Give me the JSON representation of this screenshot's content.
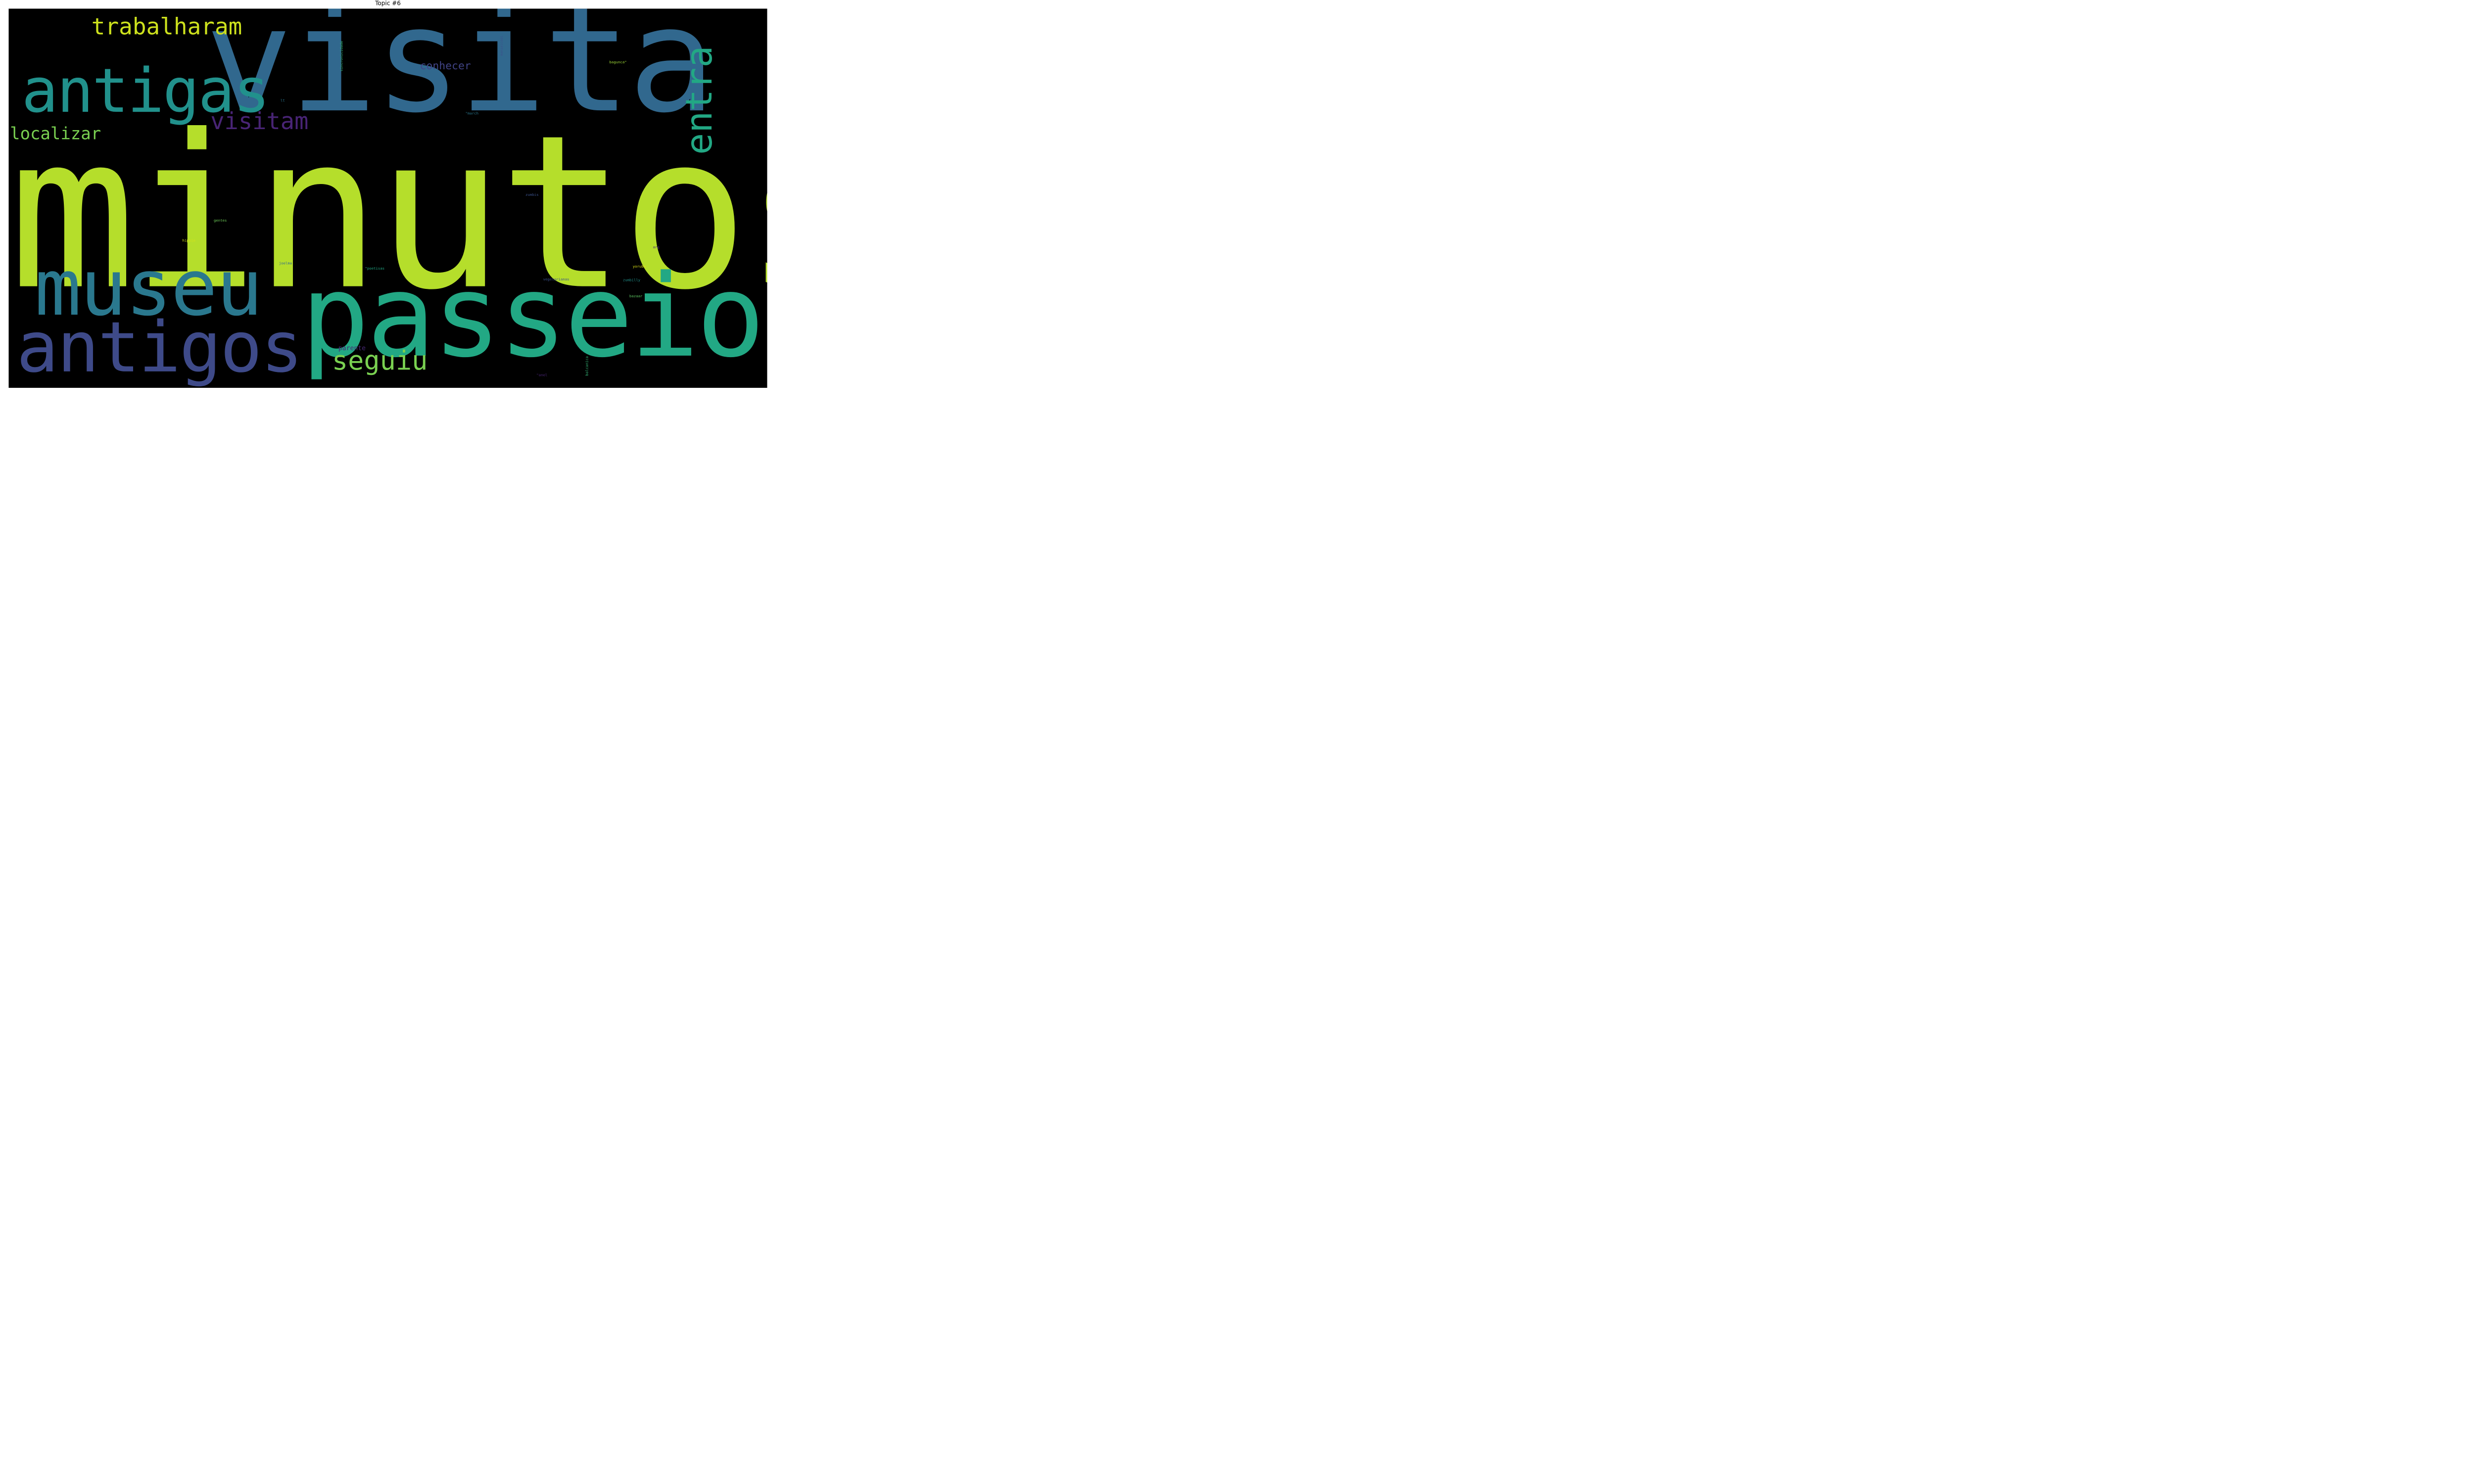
{
  "title": "Topic #6",
  "words": [
    {
      "key": "minutos",
      "text": "minutos",
      "color": "#b5de2b"
    },
    {
      "key": "visita",
      "text": "visita",
      "color": "#31688e"
    },
    {
      "key": "passeio",
      "text": "passeio",
      "color": "#22a884"
    },
    {
      "key": "antigas",
      "text": "antigas",
      "color": "#21918c"
    },
    {
      "key": "museu",
      "text": "museu",
      "color": "#2a788e"
    },
    {
      "key": "antigos",
      "text": "antigos",
      "color": "#3e4a89"
    },
    {
      "key": "entra",
      "text": "entra",
      "color": "#22a884"
    },
    {
      "key": "trabalharam",
      "text": "trabalharam",
      "color": "#cde11d"
    },
    {
      "key": "visitam",
      "text": "visitam",
      "color": "#482475"
    },
    {
      "key": "localizar",
      "text": "localizar",
      "color": "#7ad151"
    },
    {
      "key": "seguiu",
      "text": "seguiu",
      "color": "#7ad151"
    },
    {
      "key": "conhecer",
      "text": "conhecer",
      "color": "#414487"
    },
    {
      "key": "parente",
      "text": "parente",
      "color": "#482878"
    },
    {
      "key": "sincronicidade",
      "text": "sincronicidade",
      "color": "#35b779"
    },
    {
      "key": "manialcool",
      "text": "manialcool",
      "color": "#3b528b"
    },
    {
      "key": "bagunca",
      "text": "bagunca\"",
      "color": "#a0da39"
    },
    {
      "key": "lt",
      "text": "lt",
      "color": "#2a788e"
    },
    {
      "key": "march",
      "text": "\"march",
      "color": "#2a788e"
    },
    {
      "key": "zumbis",
      "text": "zumbis",
      "color": "#3b528b"
    },
    {
      "key": "gentes",
      "text": "gentes",
      "color": "#6ece58"
    },
    {
      "key": "hippie",
      "text": "hippie",
      "color": "#d2e21b"
    },
    {
      "key": "arg",
      "text": "arg",
      "color": "#482878"
    },
    {
      "key": "joelma",
      "text": "joelma",
      "color": "#31688e"
    },
    {
      "key": "poetisas",
      "text": "\"poetisas",
      "color": "#22a884"
    },
    {
      "key": "yoruba",
      "text": "yoruba",
      "color": "#dde318"
    },
    {
      "key": "vegetarianas",
      "text": "vegetarianas",
      "color": "#3b528b"
    },
    {
      "key": "zumbilly",
      "text": "zumbilly",
      "color": "#21918c"
    },
    {
      "key": "bazaar",
      "text": "bazaar",
      "color": "#5ec962"
    },
    {
      "key": "balcanica",
      "text": "balcanica",
      "color": "#35b779"
    },
    {
      "key": "anel",
      "text": "\"anel",
      "color": "#482475"
    }
  ]
}
